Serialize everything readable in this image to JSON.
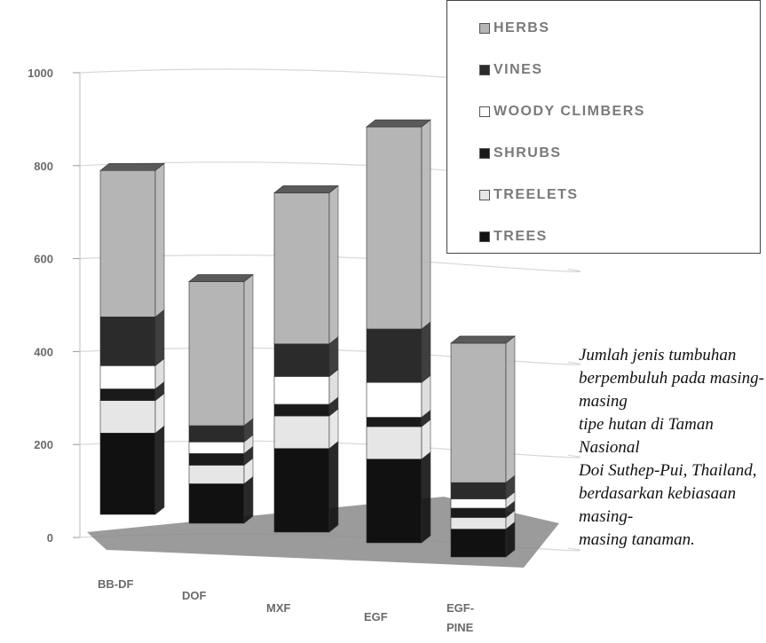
{
  "chart_data": {
    "type": "bar",
    "stacked": true,
    "style": "3d",
    "categories": [
      "BB-DF",
      "DOF",
      "MXF",
      "EGF",
      "EGF-\nPINE"
    ],
    "ylim": [
      0,
      1000
    ],
    "yticks": [
      "0",
      "200",
      "400",
      "600",
      "800",
      "1000"
    ],
    "series": [
      {
        "name": "TREES",
        "values": [
          175,
          85,
          180,
          180,
          60
        ],
        "color": "#111111"
      },
      {
        "name": "TREELETS",
        "values": [
          70,
          40,
          70,
          70,
          25
        ],
        "color": "#e6e6e6"
      },
      {
        "name": "SHRUBS",
        "values": [
          25,
          25,
          25,
          20,
          20
        ],
        "color": "#1a1a1a"
      },
      {
        "name": "WOODY CLIMBERS",
        "values": [
          50,
          25,
          60,
          75,
          20
        ],
        "color": "#ffffff"
      },
      {
        "name": "VINES",
        "values": [
          105,
          35,
          70,
          115,
          35
        ],
        "color": "#2b2b2b"
      },
      {
        "name": "HERBS",
        "values": [
          315,
          310,
          325,
          435,
          300
        ],
        "color": "#b5b5b5"
      }
    ],
    "legend_placement": "top-right",
    "grid": true
  },
  "legend_title_order": [
    "HERBS",
    "VINES",
    "WOODY CLIMBERS",
    "SHRUBS",
    "TREELETS",
    "TREES"
  ],
  "caption": "Jumlah jenis tumbuhan\nberpembuluh pada masing-masing\ntipe hutan di Taman Nasional\nDoi Suthep-Pui, Thailand,\nberdasarkan kebiasaan masing-\nmasing tanaman."
}
